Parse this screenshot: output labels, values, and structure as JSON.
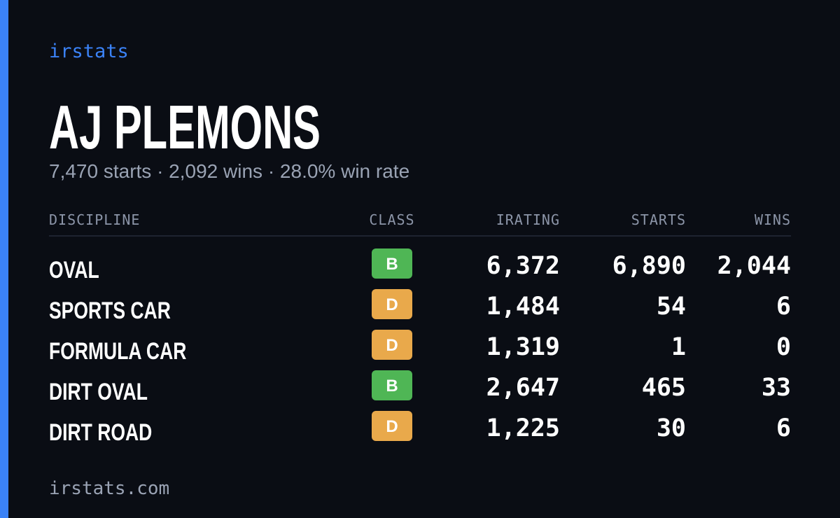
{
  "brand": "irstats",
  "driver": {
    "name": "AJ PLEMONS",
    "summary": "7,470 starts · 2,092 wins · 28.0% win rate"
  },
  "table": {
    "headers": [
      "DISCIPLINE",
      "CLASS",
      "IRATING",
      "STARTS",
      "WINS"
    ],
    "rows": [
      [
        "OVAL",
        "B",
        "6,372",
        "6,890",
        "2,044"
      ],
      [
        "SPORTS CAR",
        "D",
        "1,484",
        "54",
        "6"
      ],
      [
        "FORMULA CAR",
        "D",
        "1,319",
        "1",
        "0"
      ],
      [
        "DIRT OVAL",
        "B",
        "2,647",
        "465",
        "33"
      ],
      [
        "DIRT ROAD",
        "D",
        "1,225",
        "30",
        "6"
      ]
    ],
    "badge_colors": {
      "B": "#4fb655",
      "D": "#e9a94b"
    }
  },
  "footer": "irstats.com"
}
